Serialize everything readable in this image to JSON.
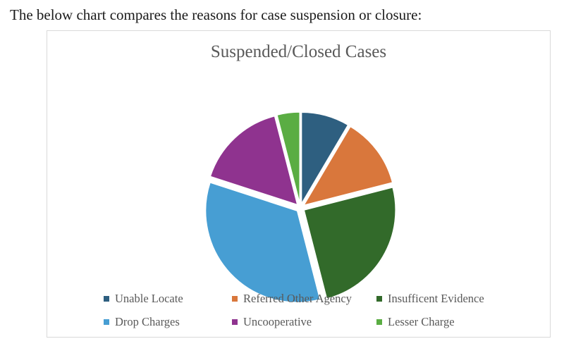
{
  "intro_text": "The below chart compares the reasons for case suspension or closure:",
  "chart_data": {
    "type": "pie",
    "title": "Suspended/Closed Cases",
    "legend_position": "bottom",
    "slices": [
      {
        "label": "Unable Locate",
        "value": 8.5,
        "color": "#2e5f80"
      },
      {
        "label": "Referred Other Agency",
        "value": 12.5,
        "color": "#d9773c"
      },
      {
        "label": "Insufficent Evidence",
        "value": 25,
        "color": "#326a2a"
      },
      {
        "label": "Drop Charges",
        "value": 34,
        "color": "#479ed3"
      },
      {
        "label": "Uncooperative",
        "value": 16,
        "color": "#8f338f"
      },
      {
        "label": "Lesser Charge",
        "value": 4,
        "color": "#5aad43"
      }
    ]
  }
}
